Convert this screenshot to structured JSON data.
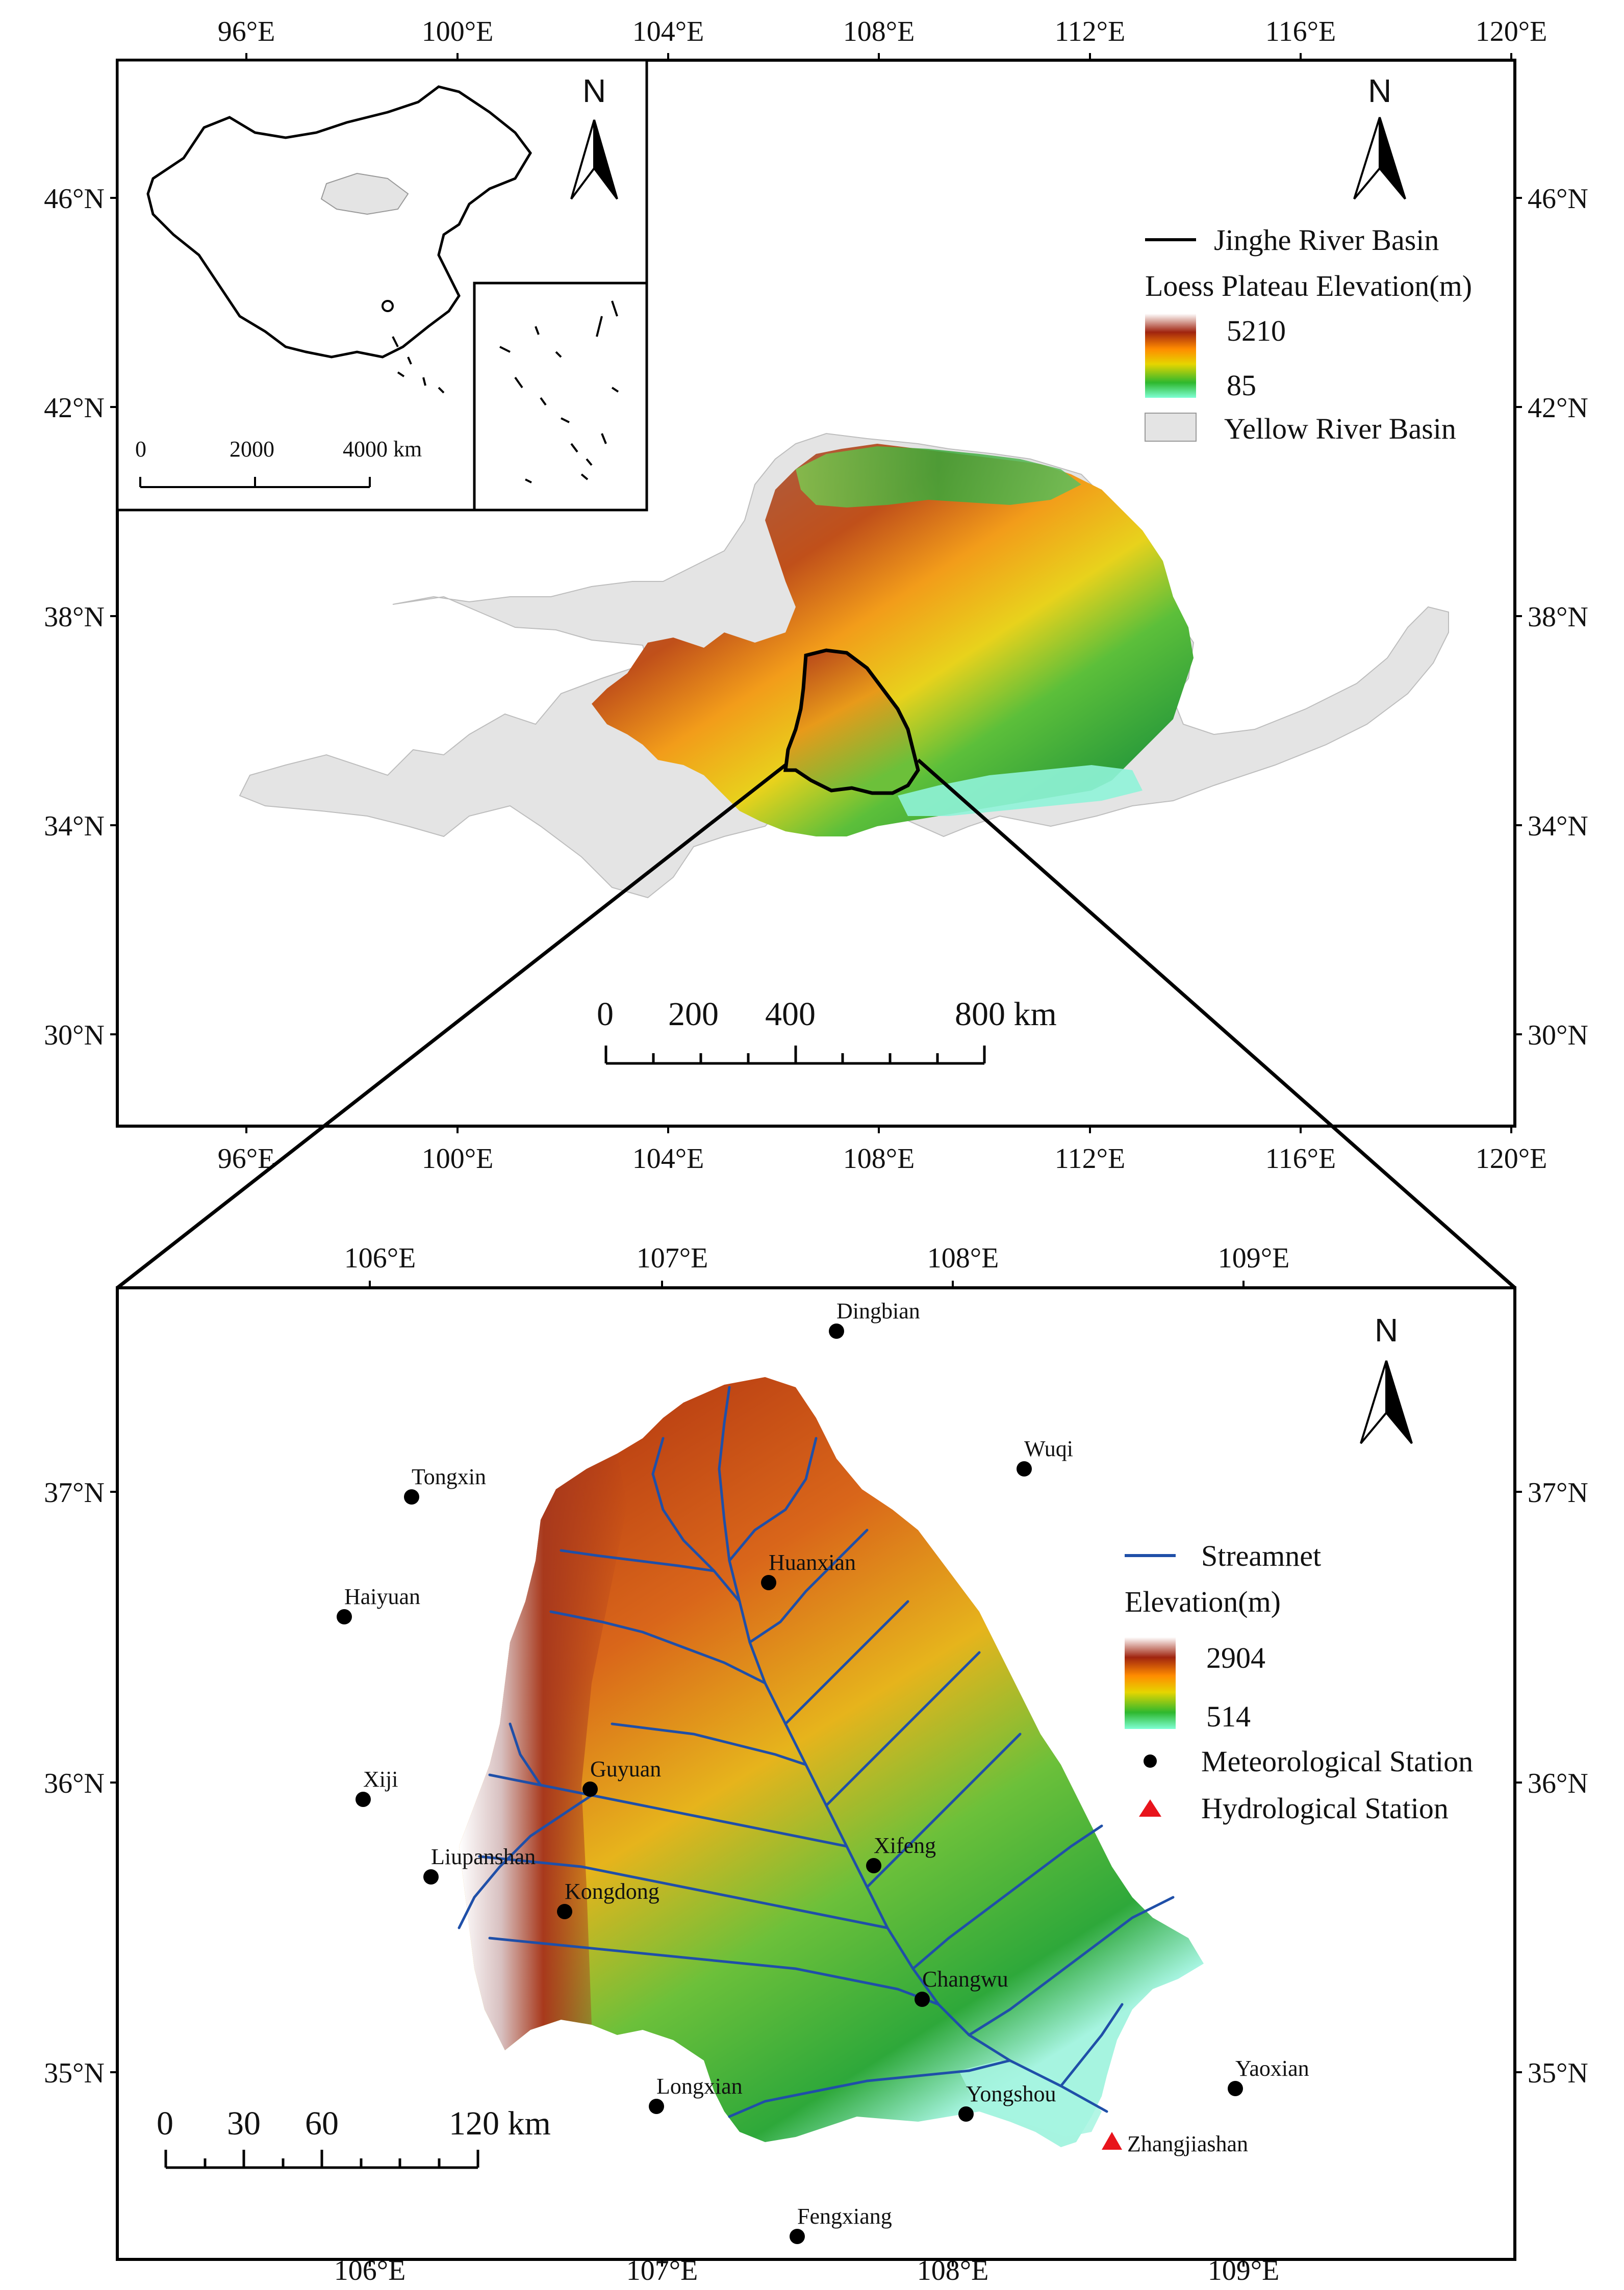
{
  "top_map": {
    "lon_ticks": [
      "96°E",
      "100°E",
      "104°E",
      "108°E",
      "112°E",
      "116°E",
      "120°E"
    ],
    "lat_ticks": [
      "46°N",
      "42°N",
      "38°N",
      "34°N",
      "30°N"
    ],
    "inset": {
      "scale": {
        "ticks": [
          "0",
          "2000",
          "4000 km"
        ]
      }
    },
    "north": "N",
    "legend": {
      "boundary": "Jinghe River Basin",
      "elevation_title": "Loess Plateau Elevation(m)",
      "elev_high": "5210",
      "elev_low": "85",
      "yellow_river": "Yellow River Basin"
    },
    "scale": {
      "ticks": [
        "0",
        "200",
        "400",
        "800 km"
      ]
    }
  },
  "bottom_map": {
    "lon_ticks": [
      "106°E",
      "107°E",
      "108°E",
      "109°E"
    ],
    "lat_ticks": [
      "37°N",
      "36°N",
      "35°N"
    ],
    "north": "N",
    "legend": {
      "streamnet": "Streamnet",
      "elevation_title": "Elevation(m)",
      "elev_high": "2904",
      "elev_low": "514",
      "met_station": "Meteorological Station",
      "hydro_station": "Hydrological Station"
    },
    "stations": [
      {
        "name": "Dingbian"
      },
      {
        "name": "Wuqi"
      },
      {
        "name": "Tongxin"
      },
      {
        "name": "Huanxian"
      },
      {
        "name": "Haiyuan"
      },
      {
        "name": "Xiji"
      },
      {
        "name": "Guyuan"
      },
      {
        "name": "Liupanshan"
      },
      {
        "name": "Xifeng"
      },
      {
        "name": "Kongdong"
      },
      {
        "name": "Changwu"
      },
      {
        "name": "Yaoxian"
      },
      {
        "name": "Longxian"
      },
      {
        "name": "Yongshou"
      },
      {
        "name": "Fengxiang"
      }
    ],
    "hydro_stations": [
      {
        "name": "Zhangjiashan"
      }
    ],
    "scale": {
      "ticks": [
        "0",
        "30",
        "60",
        "120 km"
      ]
    }
  },
  "colors": {
    "frame": "#000000",
    "yellow_river_fill": "#e4e4e4",
    "stream": "#1f4fa8",
    "met_station": "#000000",
    "hydro_station": "#e8141c",
    "elev_ramp": [
      "#7fffd4",
      "#2eb82e",
      "#e6d500",
      "#ff8c00",
      "#a0240f",
      "#ffffff"
    ]
  }
}
